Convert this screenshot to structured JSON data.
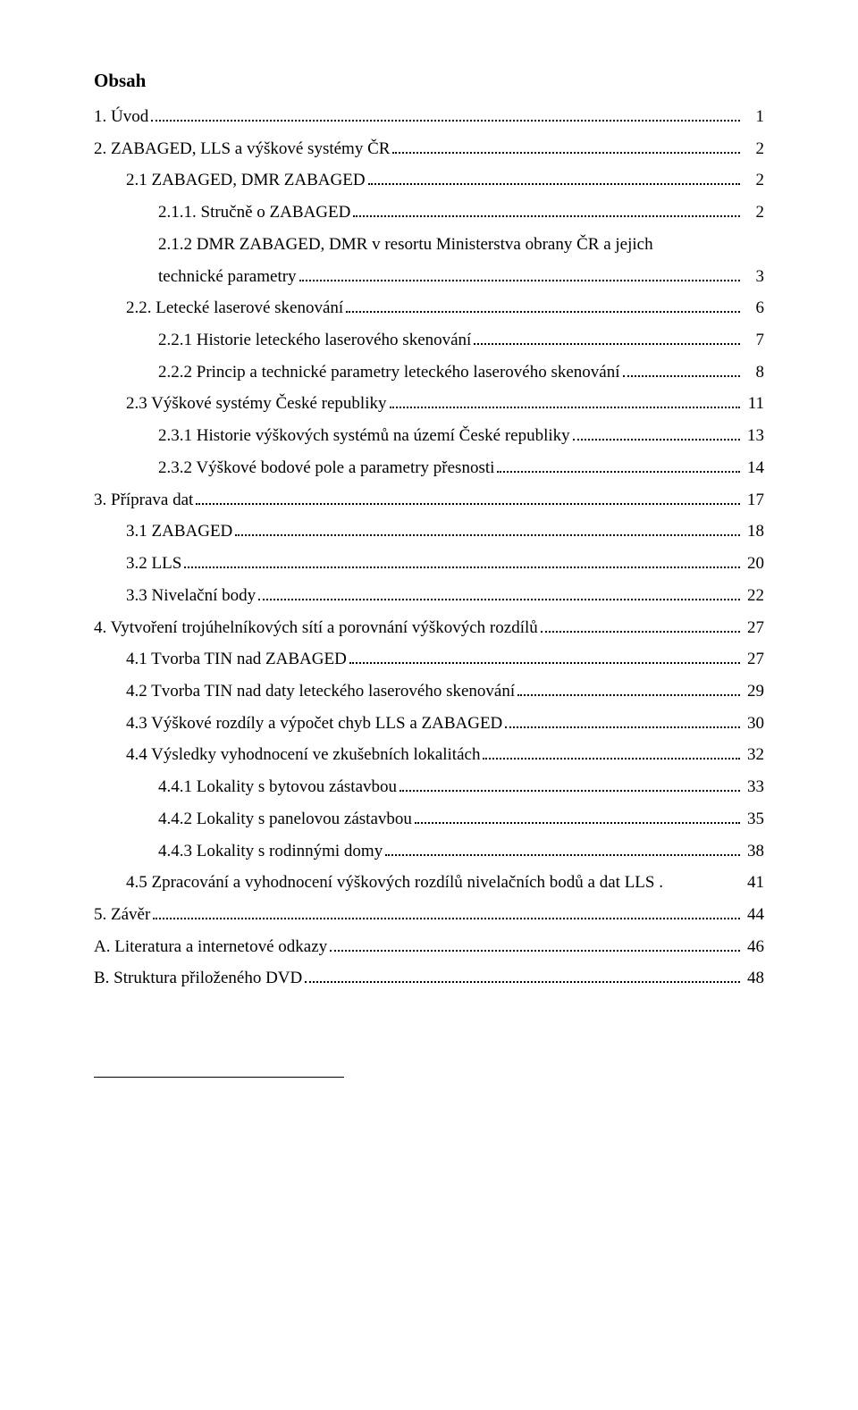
{
  "title": "Obsah",
  "font": {
    "family": "Times New Roman",
    "size_pt": 12,
    "title_size_pt": 14
  },
  "toc": [
    {
      "indent": 0,
      "label": "1. Úvod",
      "page": "1",
      "dots": true
    },
    {
      "indent": 0,
      "label": "2. ZABAGED, LLS a výškové systémy ČR",
      "page": "2",
      "dots": true
    },
    {
      "indent": 1,
      "label": "2.1 ZABAGED, DMR ZABAGED",
      "page": "2",
      "dots": true
    },
    {
      "indent": 2,
      "label": "2.1.1. Stručně o ZABAGED",
      "page": "2",
      "dots": true
    },
    {
      "indent": 2,
      "label": "2.1.2 DMR ZABAGED, DMR v resortu Ministerstva obrany ČR a jejich",
      "page": "",
      "dots": false
    },
    {
      "indent": 2,
      "label": "technické parametry",
      "page": "3",
      "dots": true
    },
    {
      "indent": 1,
      "label": "2.2. Letecké laserové skenování",
      "page": "6",
      "dots": true
    },
    {
      "indent": 2,
      "label": "2.2.1 Historie leteckého laserového skenování",
      "page": "7",
      "dots": true
    },
    {
      "indent": 2,
      "label": "2.2.2 Princip a technické parametry leteckého laserového skenování",
      "page": "8",
      "dots": true
    },
    {
      "indent": 1,
      "label": "2.3 Výškové systémy České republiky",
      "page": "11",
      "dots": true
    },
    {
      "indent": 2,
      "label": "2.3.1 Historie výškových systémů na území České republiky",
      "page": "13",
      "dots": true
    },
    {
      "indent": 2,
      "label": "2.3.2 Výškové bodové pole a parametry přesnosti",
      "page": "14",
      "dots": true
    },
    {
      "indent": 0,
      "label": "3. Příprava dat",
      "page": "17",
      "dots": true
    },
    {
      "indent": 1,
      "label": "3.1 ZABAGED",
      "page": "18",
      "dots": true
    },
    {
      "indent": 1,
      "label": "3.2 LLS",
      "page": "20",
      "dots": true
    },
    {
      "indent": 1,
      "label": "3.3 Nivelační body",
      "page": "22",
      "dots": true
    },
    {
      "indent": 0,
      "label": "4. Vytvoření trojúhelníkových sítí a porovnání výškových rozdílů",
      "page": "27",
      "dots": true
    },
    {
      "indent": 1,
      "label": "4.1 Tvorba TIN nad ZABAGED",
      "page": "27",
      "dots": true
    },
    {
      "indent": 1,
      "label": "4.2 Tvorba TIN nad daty leteckého laserového skenování",
      "page": "29",
      "dots": true
    },
    {
      "indent": 1,
      "label": "4.3 Výškové rozdíly a výpočet chyb LLS a ZABAGED",
      "page": "30",
      "dots": true
    },
    {
      "indent": 1,
      "label": "4.4 Výsledky vyhodnocení ve zkušebních lokalitách",
      "page": "32",
      "dots": true
    },
    {
      "indent": 2,
      "label": "4.4.1 Lokality s bytovou zástavbou",
      "page": "33",
      "dots": true
    },
    {
      "indent": 2,
      "label": "4.4.2 Lokality s panelovou zástavbou",
      "page": "35",
      "dots": true
    },
    {
      "indent": 2,
      "label": "4.4.3 Lokality s rodinnými domy",
      "page": "38",
      "dots": true
    },
    {
      "indent": 1,
      "label": "4.5 Zpracování a vyhodnocení výškových rozdílů nivelačních bodů a dat LLS .",
      "page": "41",
      "dots": false
    },
    {
      "indent": 0,
      "label": "5. Závěr",
      "page": "44",
      "dots": true
    },
    {
      "indent": 0,
      "label": "A. Literatura a internetové odkazy",
      "page": "46",
      "dots": true
    },
    {
      "indent": 0,
      "label": "B. Struktura přiloženého DVD",
      "page": "48",
      "dots": true
    }
  ]
}
